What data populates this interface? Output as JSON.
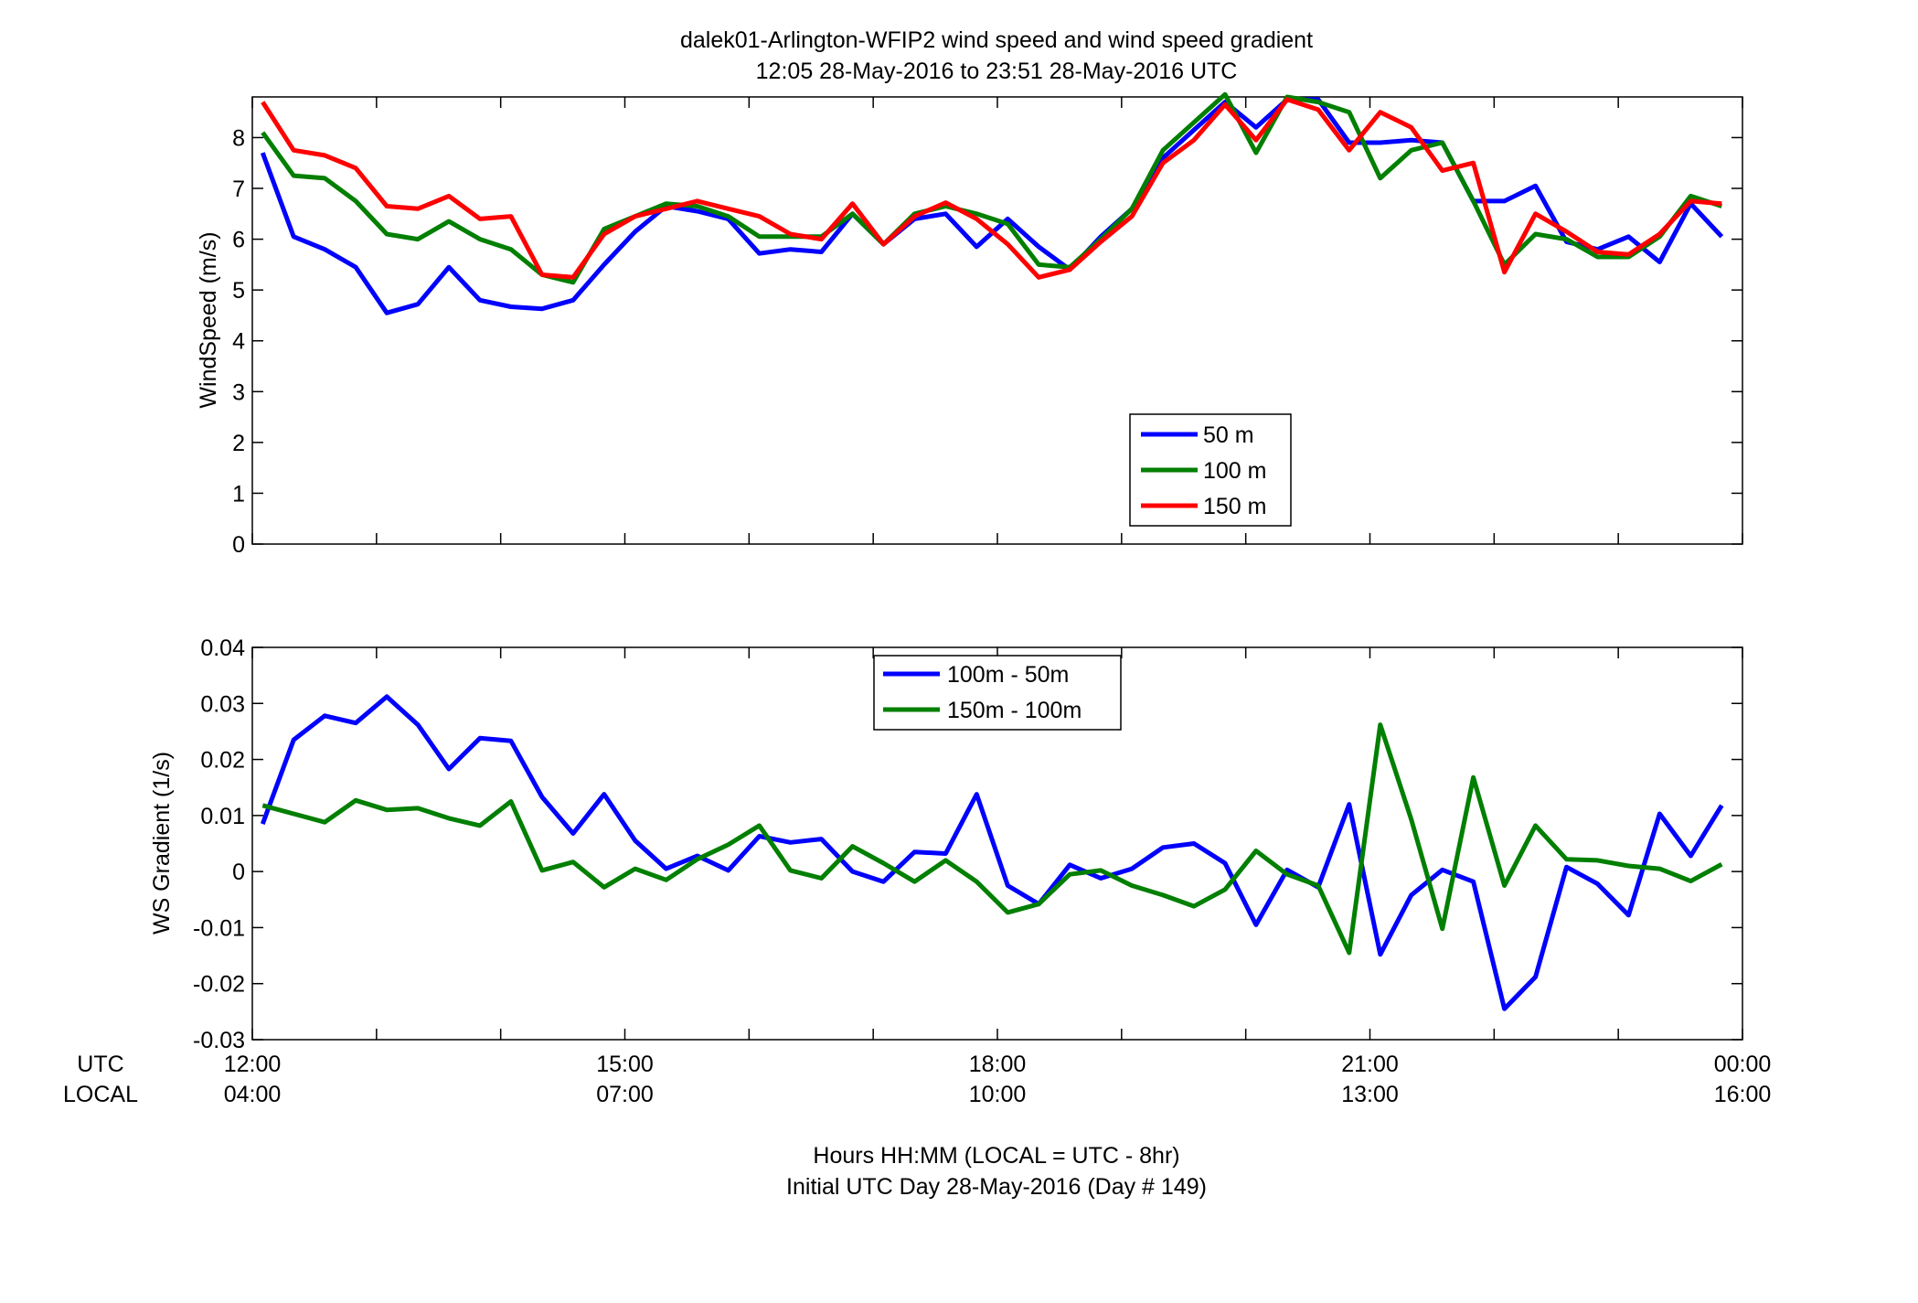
{
  "figure": {
    "title_line1": "dalek01-Arlington-WFIP2  wind speed and wind speed gradient",
    "title_line2": "12:05 28-May-2016 to 23:51 28-May-2016  UTC",
    "xlabel_line1": "Hours HH:MM  (LOCAL = UTC - 8hr)",
    "xlabel_line2": "Initial UTC Day 28-May-2016 (Day # 149)",
    "utc_row_label": "UTC",
    "local_row_label": "LOCAL",
    "utc_ticks": [
      "12:00",
      "15:00",
      "18:00",
      "21:00",
      "00:00"
    ],
    "local_ticks": [
      "04:00",
      "07:00",
      "10:00",
      "13:00",
      "16:00"
    ]
  },
  "chart_data": [
    {
      "type": "line",
      "title": "dalek01-Arlington-WFIP2  wind speed and wind speed gradient",
      "ylabel": "WindSpeed (m/s)",
      "xlabel": "Hours HH:MM  (LOCAL = UTC - 8hr)",
      "xlim": [
        12.0,
        24.0
      ],
      "ylim": [
        0,
        8.8
      ],
      "yticks": [
        "0",
        "1",
        "2",
        "3",
        "4",
        "5",
        "6",
        "7",
        "8"
      ],
      "grid": false,
      "legend_position": "bottom-center",
      "x_start_hours": 12.083,
      "x_step_hours": 0.25,
      "series": [
        {
          "name": "50 m",
          "color": "#0000ff",
          "values": [
            7.7,
            6.05,
            5.8,
            5.45,
            4.55,
            4.72,
            5.45,
            4.8,
            4.67,
            4.63,
            4.8,
            5.5,
            6.15,
            6.65,
            6.55,
            6.4,
            5.72,
            5.8,
            5.75,
            6.5,
            5.9,
            6.4,
            6.5,
            5.85,
            6.4,
            5.85,
            5.4,
            6.05,
            6.6,
            7.6,
            8.15,
            8.7,
            8.2,
            8.75,
            8.75,
            7.9,
            7.9,
            7.95,
            7.9,
            6.75,
            6.75,
            7.05,
            5.95,
            5.8,
            6.05,
            5.55,
            6.7,
            6.05
          ]
        },
        {
          "name": "100 m",
          "color": "#007f00",
          "values": [
            8.1,
            7.25,
            7.2,
            6.75,
            6.1,
            6.0,
            6.35,
            6.0,
            5.8,
            5.3,
            5.15,
            6.2,
            6.45,
            6.7,
            6.65,
            6.45,
            6.05,
            6.05,
            6.05,
            6.5,
            5.9,
            6.5,
            6.65,
            6.5,
            6.3,
            5.5,
            5.45,
            6.0,
            6.6,
            7.75,
            8.3,
            8.85,
            7.7,
            8.8,
            8.7,
            8.5,
            7.2,
            7.75,
            7.9,
            6.75,
            5.5,
            6.1,
            6.0,
            5.65,
            5.65,
            6.05,
            6.85,
            6.65
          ]
        },
        {
          "name": "150 m",
          "color": "#ff0000",
          "values": [
            8.7,
            7.75,
            7.65,
            7.4,
            6.65,
            6.6,
            6.85,
            6.4,
            6.45,
            5.3,
            5.25,
            6.1,
            6.45,
            6.6,
            6.75,
            6.6,
            6.45,
            6.1,
            6.0,
            6.7,
            5.9,
            6.45,
            6.72,
            6.4,
            5.9,
            5.25,
            5.4,
            5.95,
            6.45,
            7.5,
            7.95,
            8.65,
            7.95,
            8.75,
            8.55,
            7.75,
            8.5,
            8.2,
            7.35,
            7.5,
            5.35,
            6.5,
            6.15,
            5.75,
            5.7,
            6.1,
            6.75,
            6.7
          ]
        }
      ]
    },
    {
      "type": "line",
      "ylabel": "WS Gradient (1/s)",
      "xlabel": "Hours HH:MM  (LOCAL = UTC - 8hr)",
      "xlim": [
        12.0,
        24.0
      ],
      "ylim": [
        -0.03,
        0.04
      ],
      "yticks": [
        "-0.03",
        "-0.02",
        "-0.01",
        "0",
        "0.01",
        "0.02",
        "0.03",
        "0.04"
      ],
      "grid": false,
      "legend_position": "top-center",
      "x_start_hours": 12.083,
      "x_step_hours": 0.25,
      "series": [
        {
          "name": "100m - 50m",
          "color": "#0000ff",
          "values": [
            0.0085,
            0.0235,
            0.0278,
            0.0265,
            0.0312,
            0.0262,
            0.0183,
            0.0238,
            0.0233,
            0.0133,
            0.0068,
            0.0138,
            0.0055,
            0.0005,
            0.0028,
            0.0002,
            0.0063,
            0.0052,
            0.0058,
            0.0,
            -0.0018,
            0.0035,
            0.0032,
            0.0138,
            -0.0025,
            -0.0058,
            0.0012,
            -0.0012,
            0.0005,
            0.0043,
            0.005,
            0.0015,
            -0.0095,
            0.0003,
            -0.0028,
            0.012,
            -0.0148,
            -0.0042,
            0.0003,
            -0.0018,
            -0.0245,
            -0.0188,
            0.0008,
            -0.0022,
            -0.0078,
            0.0103,
            0.0028,
            0.0118
          ]
        },
        {
          "name": "150m - 100m",
          "color": "#007f00",
          "values": [
            0.0118,
            0.0103,
            0.0088,
            0.0127,
            0.011,
            0.0113,
            0.0095,
            0.0082,
            0.0125,
            0.0002,
            0.0017,
            -0.0028,
            0.0005,
            -0.0015,
            0.0022,
            0.0048,
            0.0082,
            0.0002,
            -0.0012,
            0.0045,
            0.0015,
            -0.0018,
            0.002,
            -0.0018,
            -0.0073,
            -0.0058,
            -0.0005,
            0.0002,
            -0.0025,
            -0.0042,
            -0.0062,
            -0.0032,
            0.0037,
            -0.0005,
            -0.0025,
            -0.0145,
            0.0262,
            0.0093,
            -0.0102,
            0.0168,
            -0.0025,
            0.0082,
            0.0022,
            0.002,
            0.001,
            0.0005,
            -0.0017,
            0.0013
          ]
        }
      ]
    }
  ]
}
